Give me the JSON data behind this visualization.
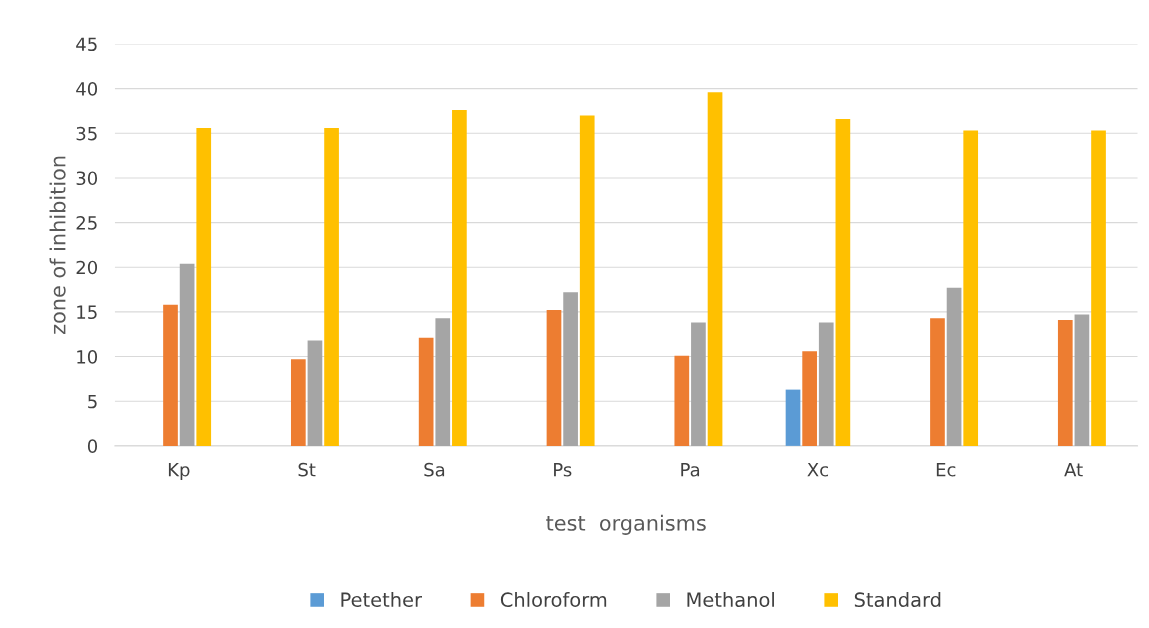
{
  "chart_data": {
    "type": "bar",
    "xlabel": "test  organisms",
    "ylabel": "zone of inhibition",
    "categories": [
      "Kp",
      "St",
      "Sa",
      "Ps",
      "Pa",
      "Xc",
      "Ec",
      "At"
    ],
    "series": [
      {
        "name": "Petether",
        "color": "#5b9bd5",
        "values": [
          0,
          0,
          0,
          0,
          0,
          6.3,
          0,
          0
        ]
      },
      {
        "name": "Chloroform",
        "color": "#ed7d31",
        "values": [
          15.8,
          9.7,
          12.1,
          15.2,
          10.1,
          10.6,
          14.3,
          14.1
        ]
      },
      {
        "name": "Methanol",
        "color": "#a5a5a5",
        "values": [
          20.4,
          11.8,
          14.3,
          17.2,
          13.8,
          13.8,
          17.7,
          14.7
        ]
      },
      {
        "name": "Standard",
        "color": "#ffc000",
        "values": [
          35.6,
          35.6,
          37.6,
          37.0,
          39.6,
          36.6,
          35.3,
          35.3
        ]
      }
    ],
    "ylim": [
      0,
      45
    ],
    "yticks": [
      0,
      5,
      10,
      15,
      20,
      25,
      30,
      35,
      40,
      45
    ],
    "grid": "y",
    "legend": "bottom"
  }
}
